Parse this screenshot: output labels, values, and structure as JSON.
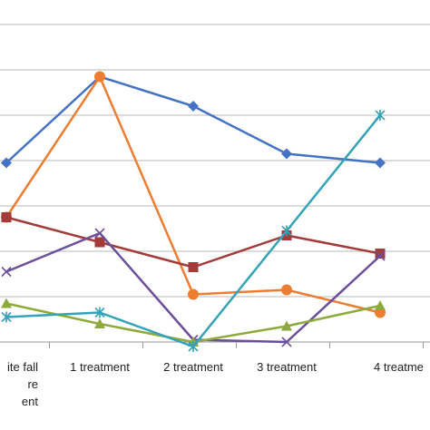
{
  "chart_data": {
    "type": "line",
    "categories": [
      "...ite fall ...re ...ment",
      "1 treatment",
      "2 treatment",
      "3 treatment",
      "4 treatme..."
    ],
    "category_label_lines": [
      [
        "ite fall",
        "re",
        "ent"
      ],
      [
        "1 treatment"
      ],
      [
        "2 treatment"
      ],
      [
        "3 treatment"
      ],
      [
        "4 treatme"
      ]
    ],
    "ylim": [
      0,
      8
    ],
    "grid": true,
    "legend": "none",
    "series": [
      {
        "color": "#4472C4",
        "marker": "diamond",
        "values": [
          3.95,
          5.85,
          5.2,
          4.15,
          3.95
        ]
      },
      {
        "color": "#ED7D31",
        "marker": "circle",
        "values": [
          2.75,
          5.85,
          1.05,
          1.15,
          0.65
        ]
      },
      {
        "color": "#A33B3A",
        "marker": "square",
        "values": [
          2.75,
          2.2,
          1.65,
          2.35,
          1.95
        ]
      },
      {
        "color": "#6B4F9A",
        "marker": "x",
        "values": [
          1.55,
          2.4,
          0.05,
          0.0,
          1.9
        ]
      },
      {
        "color": "#8FAA3C",
        "marker": "triangle",
        "values": [
          0.85,
          0.4,
          0.0,
          0.35,
          0.8
        ]
      },
      {
        "color": "#35A3B7",
        "marker": "star",
        "values": [
          0.55,
          0.65,
          -0.1,
          2.45,
          5.0
        ]
      }
    ]
  }
}
